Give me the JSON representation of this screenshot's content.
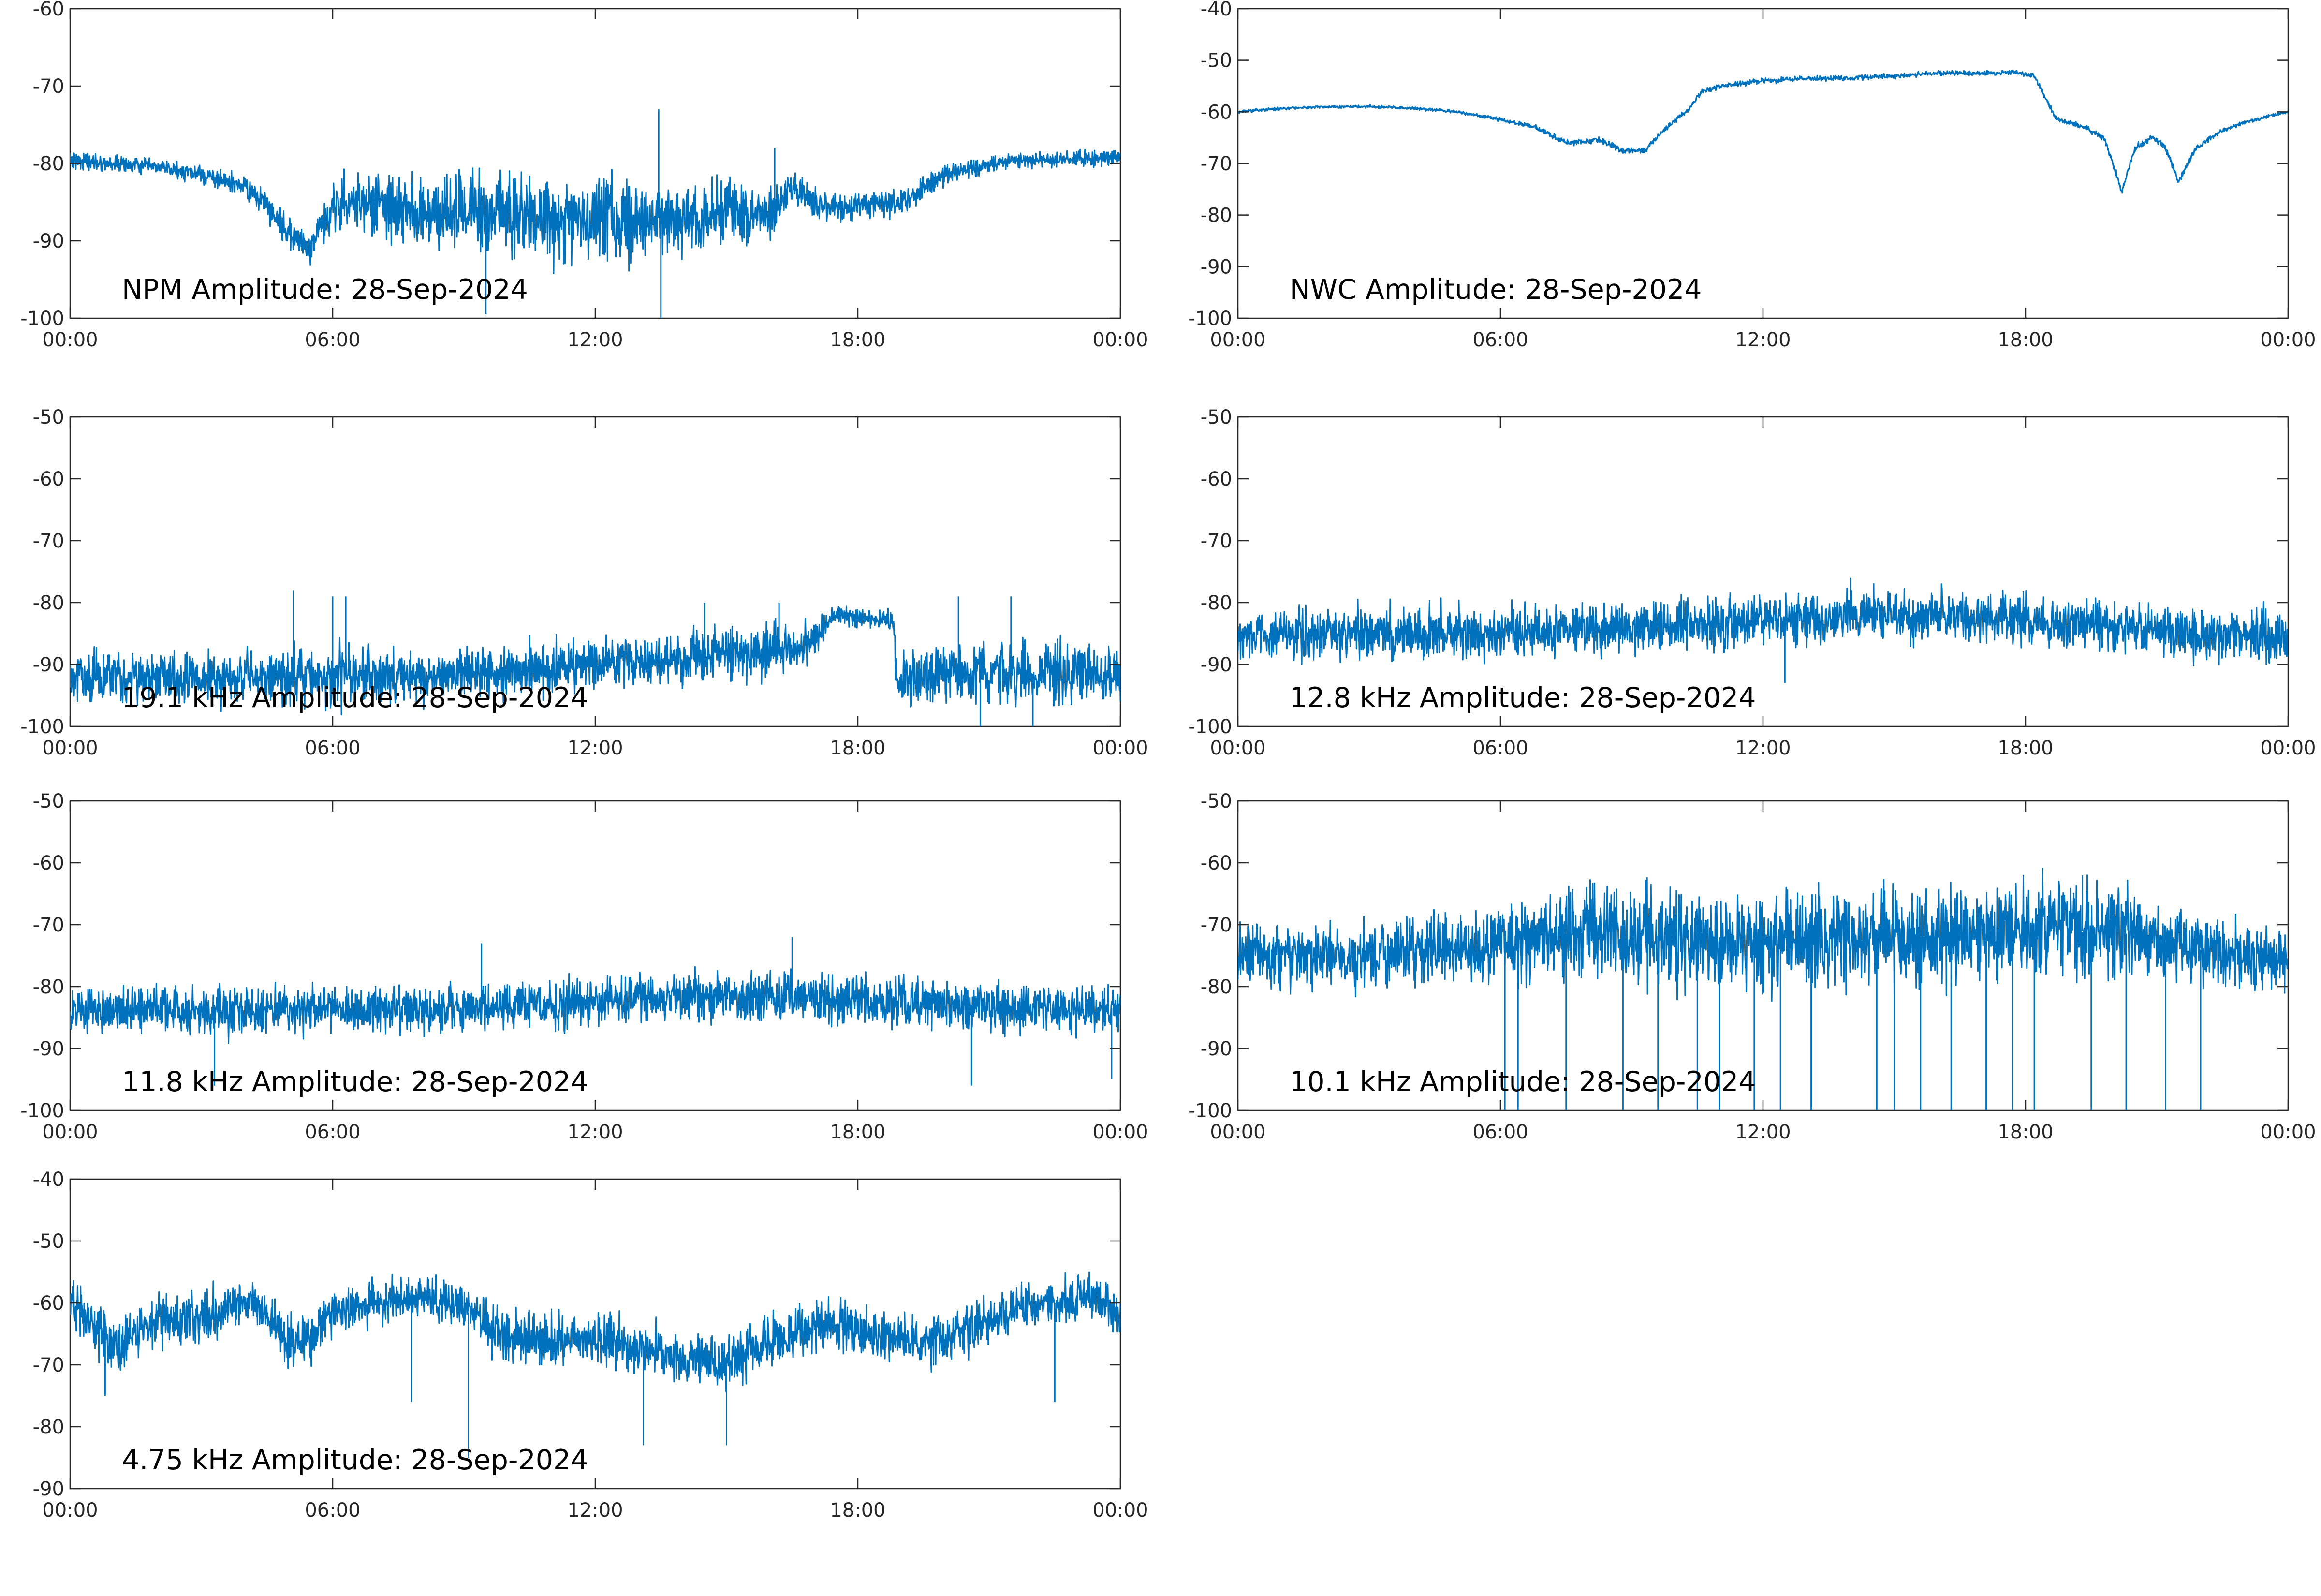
{
  "chart_data": [
    {
      "type": "line",
      "title": "NPM Amplitude: 28-Sep-2024",
      "xlabel": "",
      "ylabel": "",
      "x_ticks": [
        "00:00",
        "06:00",
        "12:00",
        "18:00",
        "00:00"
      ],
      "xlim_hours": [
        0,
        24
      ],
      "ylim": [
        -100,
        -60
      ],
      "y_ticks": [
        -60,
        -70,
        -80,
        -90,
        -100
      ],
      "grid": false,
      "series": [
        {
          "color": "#0072bd",
          "x_hours": [
            0,
            1,
            2,
            3,
            4,
            4.5,
            5,
            5.5,
            6,
            7,
            8,
            9,
            10,
            11,
            12,
            13,
            14,
            15,
            16,
            16.5,
            17,
            17.5,
            18,
            19,
            20,
            21,
            22,
            23,
            24
          ],
          "mean": [
            -79.5,
            -80,
            -80.5,
            -81.5,
            -83,
            -85.5,
            -89,
            -91,
            -85,
            -85.5,
            -86.5,
            -86.5,
            -86.5,
            -87,
            -87.5,
            -87,
            -87,
            -86.5,
            -86.5,
            -83,
            -85,
            -85.5,
            -85.5,
            -85,
            -81.5,
            -80,
            -79.5,
            -79.5,
            -79
          ],
          "spread": [
            1.5,
            1.5,
            1.5,
            1.5,
            2,
            2.5,
            3,
            3,
            5,
            6,
            7,
            7,
            8,
            8,
            8,
            8,
            7,
            7,
            5,
            3,
            3,
            2.5,
            2.5,
            2.5,
            2,
            1.5,
            1.5,
            1.5,
            1.5
          ],
          "spikes": [
            [
              13.45,
              -73
            ],
            [
              16.1,
              -78
            ],
            [
              9.5,
              -99.5
            ],
            [
              13.5,
              -100
            ]
          ]
        }
      ]
    },
    {
      "type": "line",
      "title": "NWC Amplitude: 28-Sep-2024",
      "xlabel": "",
      "ylabel": "",
      "x_ticks": [
        "00:00",
        "06:00",
        "12:00",
        "18:00",
        "00:00"
      ],
      "xlim_hours": [
        0,
        24
      ],
      "ylim": [
        -100,
        -40
      ],
      "y_ticks": [
        -40,
        -50,
        -60,
        -70,
        -80,
        -90,
        -100
      ],
      "grid": false,
      "series": [
        {
          "color": "#0072bd",
          "x_hours": [
            0,
            1,
            2,
            3,
            4,
            5,
            6,
            6.8,
            7.5,
            8.3,
            8.8,
            9.3,
            9.8,
            10.3,
            10.6,
            11,
            12,
            13,
            14,
            15,
            16,
            17,
            17.8,
            18.2,
            18.7,
            19.2,
            19.8,
            20.2,
            20.5,
            20.9,
            21.2,
            21.5,
            21.9,
            22.4,
            23,
            24
          ],
          "mean": [
            -60,
            -59.3,
            -59,
            -59,
            -59.3,
            -60,
            -61.5,
            -63,
            -66,
            -65.5,
            -67.5,
            -67.5,
            -63,
            -59.5,
            -56,
            -55,
            -54,
            -53.5,
            -53.5,
            -53,
            -52.5,
            -52.5,
            -52.3,
            -53,
            -61.5,
            -62.5,
            -65,
            -75.5,
            -67,
            -65,
            -67,
            -73.5,
            -67,
            -64,
            -62,
            -60
          ],
          "spread": [
            0.4,
            0.4,
            0.4,
            0.4,
            0.4,
            0.4,
            0.5,
            0.6,
            0.8,
            0.8,
            0.8,
            0.8,
            0.8,
            0.8,
            0.8,
            0.7,
            0.7,
            0.7,
            0.7,
            0.7,
            0.7,
            0.7,
            0.7,
            0.7,
            0.8,
            0.8,
            0.9,
            1,
            0.9,
            0.9,
            0.9,
            1,
            0.9,
            0.6,
            0.5,
            0.4
          ],
          "spikes": []
        }
      ]
    },
    {
      "type": "line",
      "title": "19.1 kHz Amplitude: 28-Sep-2024",
      "xlabel": "",
      "ylabel": "",
      "x_ticks": [
        "00:00",
        "06:00",
        "12:00",
        "18:00",
        "00:00"
      ],
      "xlim_hours": [
        0,
        24
      ],
      "ylim": [
        -100,
        -50
      ],
      "y_ticks": [
        -50,
        -60,
        -70,
        -80,
        -90,
        -100
      ],
      "grid": false,
      "series": [
        {
          "color": "#0072bd",
          "x_hours": [
            0,
            2,
            4,
            6,
            8,
            10,
            12,
            14,
            16,
            16.9,
            17.4,
            18,
            18.8,
            18.9,
            19,
            20,
            21,
            22,
            23,
            24
          ],
          "mean": [
            -92.5,
            -92,
            -92,
            -92,
            -92,
            -91,
            -90,
            -89,
            -88,
            -87,
            -82,
            -82.5,
            -83,
            -92,
            -92,
            -91.5,
            -91.5,
            -91.5,
            -91.5,
            -92
          ],
          "spread": [
            6,
            6,
            6,
            7,
            6,
            6,
            6,
            6,
            6,
            5,
            2.5,
            2.5,
            2.5,
            7,
            7,
            7,
            7,
            7,
            7,
            6
          ],
          "spikes": [
            [
              5.1,
              -78
            ],
            [
              6.0,
              -79
            ],
            [
              6.3,
              -79
            ],
            [
              14.5,
              -80
            ],
            [
              20.3,
              -79
            ],
            [
              21.5,
              -79
            ],
            [
              22,
              -100
            ],
            [
              20.8,
              -100
            ],
            [
              16.2,
              -80
            ]
          ]
        }
      ]
    },
    {
      "type": "line",
      "title": "12.8 kHz Amplitude: 28-Sep-2024",
      "xlabel": "",
      "ylabel": "",
      "x_ticks": [
        "00:00",
        "06:00",
        "12:00",
        "18:00",
        "00:00"
      ],
      "xlim_hours": [
        0,
        24
      ],
      "ylim": [
        -100,
        -50
      ],
      "y_ticks": [
        -50,
        -60,
        -70,
        -80,
        -90,
        -100
      ],
      "grid": false,
      "series": [
        {
          "color": "#0072bd",
          "x_hours": [
            0,
            3,
            6,
            9,
            12,
            14,
            16,
            18,
            20,
            22,
            24
          ],
          "mean": [
            -85,
            -85,
            -85,
            -84,
            -83,
            -82,
            -82,
            -83,
            -84,
            -85,
            -85.5
          ],
          "spread": [
            6,
            6,
            6,
            6,
            6,
            6,
            6,
            6,
            6,
            6,
            6
          ],
          "spikes": [
            [
              12.5,
              -93
            ],
            [
              14,
              -76
            ]
          ]
        }
      ]
    },
    {
      "type": "line",
      "title": "11.8 kHz Amplitude: 28-Sep-2024",
      "xlabel": "",
      "ylabel": "",
      "x_ticks": [
        "00:00",
        "06:00",
        "12:00",
        "18:00",
        "00:00"
      ],
      "xlim_hours": [
        0,
        24
      ],
      "ylim": [
        -100,
        -50
      ],
      "y_ticks": [
        -50,
        -60,
        -70,
        -80,
        -90,
        -100
      ],
      "grid": false,
      "series": [
        {
          "color": "#0072bd",
          "x_hours": [
            0,
            3,
            6,
            9,
            12,
            14,
            16,
            18,
            20,
            22,
            24
          ],
          "mean": [
            -84,
            -84,
            -84,
            -83.5,
            -82.5,
            -81.5,
            -81.5,
            -82,
            -83,
            -83.5,
            -83.5
          ],
          "spread": [
            5.5,
            5.5,
            5.5,
            5.5,
            5.5,
            5.5,
            5.5,
            5.5,
            5.5,
            5.5,
            5.5
          ],
          "spikes": [
            [
              9.4,
              -73
            ],
            [
              16.5,
              -72
            ],
            [
              20.6,
              -96
            ],
            [
              3.3,
              -96
            ],
            [
              23.8,
              -95
            ]
          ]
        }
      ]
    },
    {
      "type": "line",
      "title": "10.1 kHz Amplitude: 28-Sep-2024",
      "xlabel": "",
      "ylabel": "",
      "x_ticks": [
        "00:00",
        "06:00",
        "12:00",
        "18:00",
        "00:00"
      ],
      "xlim_hours": [
        0,
        24
      ],
      "ylim": [
        -100,
        -50
      ],
      "y_ticks": [
        -50,
        -60,
        -70,
        -80,
        -90,
        -100
      ],
      "grid": false,
      "series": [
        {
          "color": "#0072bd",
          "x_hours": [
            0,
            3,
            6,
            8,
            10,
            12,
            14,
            16,
            18,
            20,
            22,
            24
          ],
          "mean": [
            -75,
            -75,
            -73,
            -71,
            -72,
            -73,
            -72,
            -72,
            -71,
            -71,
            -74,
            -76
          ],
          "spread": [
            7,
            7,
            9,
            10,
            11,
            11,
            11,
            11,
            11,
            11,
            8,
            7
          ],
          "spikes": [
            [
              6.1,
              -100
            ],
            [
              6.4,
              -100
            ],
            [
              7.5,
              -100
            ],
            [
              8.8,
              -100
            ],
            [
              9.6,
              -100
            ],
            [
              10.5,
              -100
            ],
            [
              11,
              -100
            ],
            [
              11.8,
              -100
            ],
            [
              12.4,
              -100
            ],
            [
              13.1,
              -100
            ],
            [
              14.6,
              -100
            ],
            [
              15,
              -100
            ],
            [
              15.6,
              -100
            ],
            [
              16.3,
              -100
            ],
            [
              17.1,
              -100
            ],
            [
              17.7,
              -100
            ],
            [
              18.2,
              -100
            ],
            [
              19.5,
              -100
            ],
            [
              20.3,
              -100
            ],
            [
              21.2,
              -100
            ],
            [
              22,
              -100
            ],
            [
              19.3,
              -62
            ]
          ]
        }
      ]
    },
    {
      "type": "line",
      "title": "4.75 kHz Amplitude: 28-Sep-2024",
      "xlabel": "",
      "ylabel": "",
      "x_ticks": [
        "00:00",
        "06:00",
        "12:00",
        "18:00",
        "00:00"
      ],
      "xlim_hours": [
        0,
        24
      ],
      "ylim": [
        -90,
        -40
      ],
      "y_ticks": [
        -40,
        -50,
        -60,
        -70,
        -80,
        -90
      ],
      "grid": false,
      "series": [
        {
          "color": "#0072bd",
          "x_hours": [
            0,
            0.5,
            1,
            2,
            3,
            3.8,
            4.2,
            5,
            5.5,
            6,
            6.3,
            7,
            8,
            8.8,
            9.2,
            10,
            11,
            12,
            13,
            14,
            15,
            16,
            17,
            18,
            19,
            20,
            21,
            22,
            22.7,
            23.2,
            23.7,
            24
          ],
          "mean": [
            -59,
            -64,
            -67,
            -63,
            -62,
            -60,
            -60,
            -66,
            -66,
            -62,
            -61,
            -60,
            -59,
            -60,
            -62,
            -66,
            -66,
            -66,
            -67,
            -69,
            -70,
            -66,
            -64,
            -64,
            -66,
            -66,
            -63,
            -60,
            -60,
            -59,
            -60,
            -63
          ],
          "spread": [
            5,
            6,
            6,
            6,
            6,
            5,
            5,
            6,
            6,
            5,
            5,
            5,
            5,
            5,
            5,
            6,
            6,
            6,
            6,
            6,
            6,
            6,
            6,
            6,
            6,
            6,
            6,
            5,
            5,
            5,
            5,
            6
          ],
          "spikes": [
            [
              9.1,
              -85
            ],
            [
              0.8,
              -75
            ],
            [
              7.8,
              -76
            ],
            [
              13.1,
              -83
            ],
            [
              15,
              -83
            ],
            [
              22.5,
              -76
            ]
          ]
        }
      ]
    }
  ]
}
